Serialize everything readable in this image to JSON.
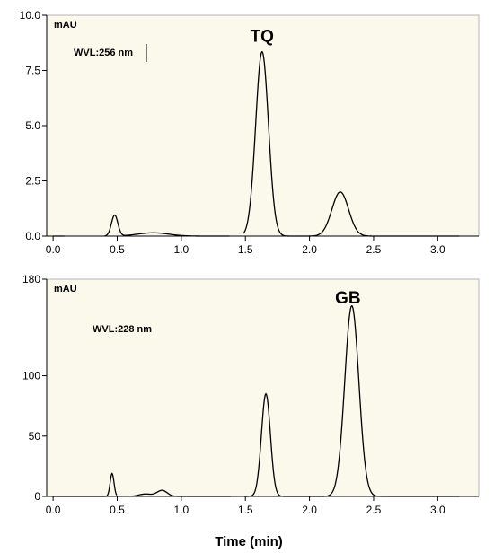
{
  "chart_data": [
    {
      "type": "line",
      "ylabel": "mAU",
      "wavelength_label": "WVL:256 nm",
      "peak_label": "TQ",
      "peak_label_at": [
        1.63,
        8.8
      ],
      "xlim": [
        -0.05,
        3.32
      ],
      "ylim": [
        0,
        10
      ],
      "x_ticks": [
        0.0,
        0.5,
        1.0,
        1.5,
        2.0,
        2.5,
        3.0
      ],
      "x_tick_labels": [
        "0.0",
        "0.5",
        "1.0",
        "1.5",
        "2.0",
        "2.5",
        "3.0"
      ],
      "y_ticks": [
        0,
        2.5,
        5.0,
        7.5,
        10.0
      ],
      "y_tick_labels": [
        "0.0",
        "2.5",
        "5.0",
        "7.5",
        "10.0"
      ],
      "trace_range": [
        0.0,
        3.17
      ],
      "line_color": "#000000",
      "background": "#fbf8ec",
      "peaks": [
        {
          "t": 0.48,
          "h": 0.95,
          "w": 0.025
        },
        {
          "t": 0.78,
          "h": 0.15,
          "w": 0.12
        },
        {
          "t": 1.63,
          "h": 8.35,
          "w": 0.05
        },
        {
          "t": 2.24,
          "h": 2.0,
          "w": 0.065
        }
      ],
      "baseline_gaps": [
        [
          0.09,
          0.4
        ],
        [
          1.38,
          1.5
        ]
      ]
    },
    {
      "type": "line",
      "ylabel": "mAU",
      "wavelength_label": "WVL:228 nm",
      "peak_label": "GB",
      "peak_label_at": [
        2.3,
        160
      ],
      "xlim": [
        -0.05,
        3.32
      ],
      "ylim": [
        0,
        180
      ],
      "x_ticks": [
        0.0,
        0.5,
        1.0,
        1.5,
        2.0,
        2.5,
        3.0
      ],
      "x_tick_labels": [
        "0.0",
        "0.5",
        "1.0",
        "1.5",
        "2.0",
        "2.5",
        "3.0"
      ],
      "y_ticks": [
        0,
        50,
        100,
        180
      ],
      "y_tick_labels": [
        "0",
        "50",
        "100",
        "180"
      ],
      "trace_range": [
        0.0,
        3.17
      ],
      "line_color": "#000000",
      "background": "#fbf8ec",
      "peaks": [
        {
          "t": 0.46,
          "h": 19,
          "w": 0.015
        },
        {
          "t": 0.85,
          "h": 5,
          "w": 0.04
        },
        {
          "t": 0.72,
          "h": 2,
          "w": 0.05
        },
        {
          "t": 1.66,
          "h": 85,
          "w": 0.035
        },
        {
          "t": 2.33,
          "h": 158,
          "w": 0.055
        }
      ],
      "baseline_gaps": [
        [
          0.5,
          0.62
        ],
        [
          1.39,
          1.49
        ]
      ]
    }
  ],
  "x_axis_title": "Time (min)"
}
